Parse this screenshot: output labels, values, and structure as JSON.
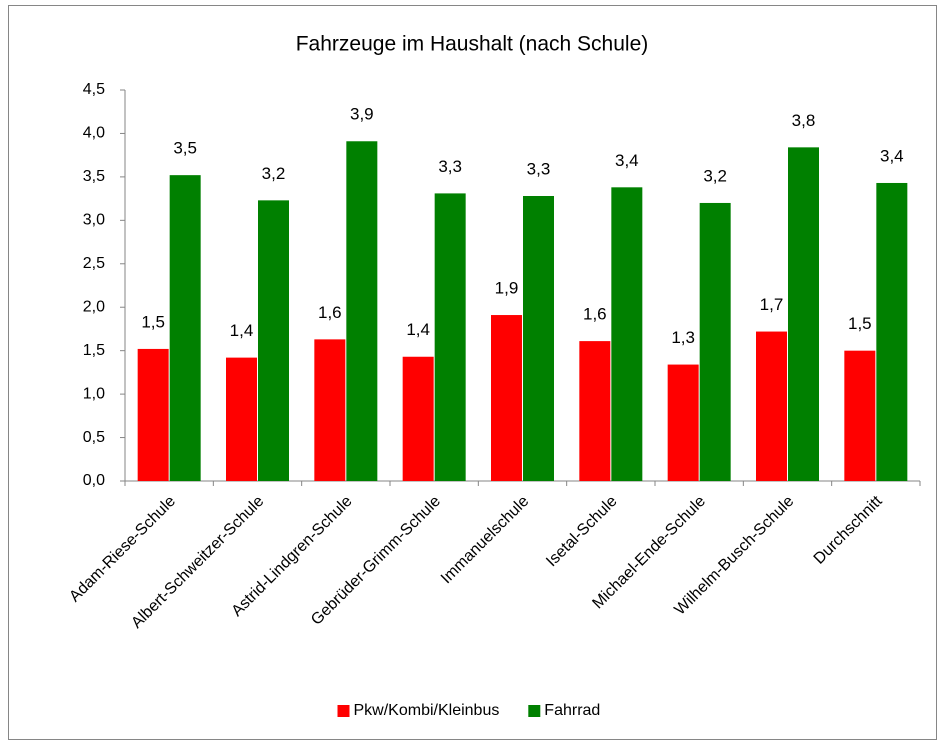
{
  "chart_data": {
    "type": "bar",
    "title": "Fahrzeuge im Haushalt (nach Schule)",
    "categories": [
      "Adam-Riese-Schule",
      "Albert-Schweitzer-Schule",
      "Astrid-Lindgren-Schule",
      "Gebrüder-Grimm-Schule",
      "Immanuelschule",
      "Isetal-Schule",
      "Michael-Ende-Schule",
      "Wilhelm-Busch-Schule",
      "Durchschnitt"
    ],
    "series": [
      {
        "name": "Pkw/Kombi/Kleinbus",
        "color": "#ff0000",
        "values": [
          1.52,
          1.42,
          1.63,
          1.43,
          1.91,
          1.61,
          1.34,
          1.72,
          1.5
        ],
        "value_labels": [
          "1,5",
          "1,4",
          "1,6",
          "1,4",
          "1,9",
          "1,6",
          "1,3",
          "1,7",
          "1,5"
        ]
      },
      {
        "name": "Fahrrad",
        "color": "#008000",
        "values": [
          3.52,
          3.23,
          3.91,
          3.31,
          3.28,
          3.38,
          3.2,
          3.84,
          3.43
        ],
        "value_labels": [
          "3,5",
          "3,2",
          "3,9",
          "3,3",
          "3,3",
          "3,4",
          "3,2",
          "3,8",
          "3,4"
        ]
      }
    ],
    "ylim": [
      0,
      4.5
    ],
    "yticks": [
      {
        "value": 0,
        "label": "0,0"
      },
      {
        "value": 0.5,
        "label": "0,5"
      },
      {
        "value": 1,
        "label": "1,0"
      },
      {
        "value": 1.5,
        "label": "1,5"
      },
      {
        "value": 2,
        "label": "2,0"
      },
      {
        "value": 2.5,
        "label": "2,5"
      },
      {
        "value": 3,
        "label": "3,0"
      },
      {
        "value": 3.5,
        "label": "3,5"
      },
      {
        "value": 4,
        "label": "4,0"
      },
      {
        "value": 4.5,
        "label": "4,5"
      }
    ],
    "legend": "bottom"
  }
}
